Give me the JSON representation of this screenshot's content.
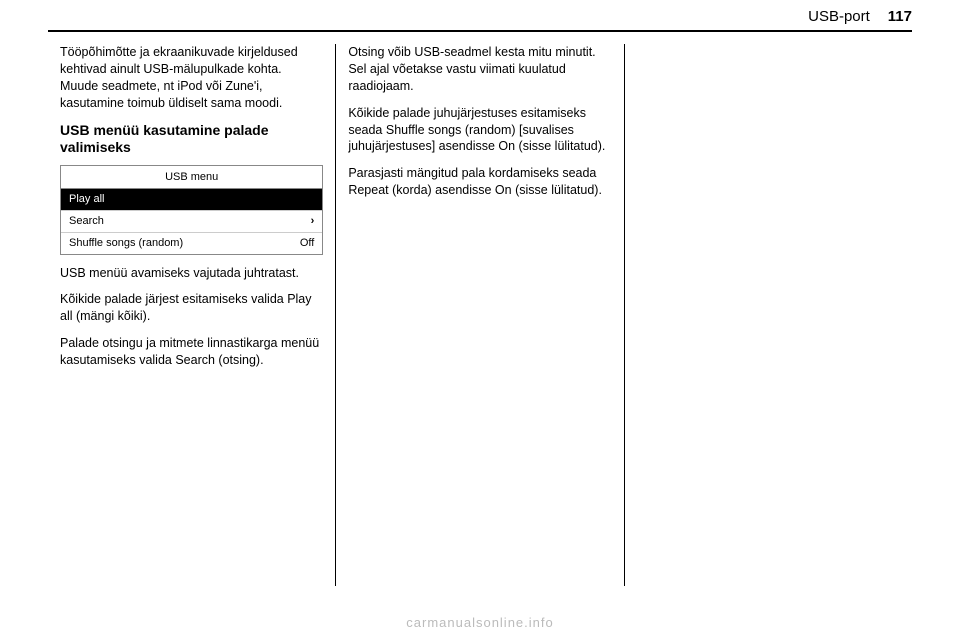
{
  "header": {
    "section": "USB-port",
    "page_number": "117"
  },
  "col1": {
    "p1": "Tööpõhimõtte ja ekraanikuvade kirjeldused kehtivad ainult USB-mälupulkade kohta. Muude seadmete, nt iPod või Zune'i, kasutamine toimub üldiselt sama moodi.",
    "h1": "USB menüü kasutamine palade valimiseks",
    "screenshot": {
      "title": "USB menu",
      "rows": [
        {
          "label": "Play all",
          "right": "",
          "selected": true
        },
        {
          "label": "Search",
          "right": "›",
          "selected": false
        },
        {
          "label": "Shuffle songs (random)",
          "right": "Off",
          "selected": false
        }
      ]
    },
    "p2": "USB menüü avamiseks vajutada juhtratast.",
    "p3": "Kõikide palade järjest esitamiseks valida Play all (mängi kõiki).",
    "p4": "Palade otsingu ja mitmete linnastikarga menüü kasutamiseks valida Search (otsing)."
  },
  "col2": {
    "p1": "Otsing võib USB-seadmel kesta mitu minutit. Sel ajal võetakse vastu viimati kuulatud raadiojaam.",
    "p2": "Kõikide palade juhujärjestuses esitamiseks seada Shuffle songs (random) [suvalises juhujärjestuses] asendisse On (sisse lülitatud).",
    "p3": "Parasjasti mängitud pala kordamiseks seada Repeat (korda) asendisse On (sisse lülitatud)."
  },
  "footer": "carmanualsonline.info"
}
